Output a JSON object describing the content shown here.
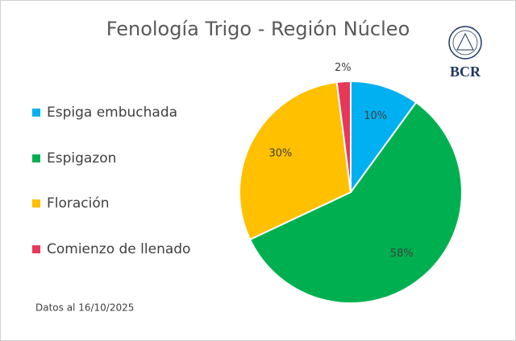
{
  "chart_data": {
    "type": "pie",
    "title": "Fenología Trigo - Región Núcleo",
    "categories": [
      "Espiga embuchada",
      "Espigazon",
      "Floración",
      "Comienzo de llenado"
    ],
    "values": [
      10,
      58,
      30,
      2
    ],
    "value_labels": [
      "10%",
      "58%",
      "30%",
      "2%"
    ],
    "colors": [
      "#00b0f0",
      "#00b050",
      "#ffc000",
      "#e8385a"
    ],
    "legend": "left",
    "note": "Datos al 16/10/2025",
    "logo": "BCR"
  }
}
